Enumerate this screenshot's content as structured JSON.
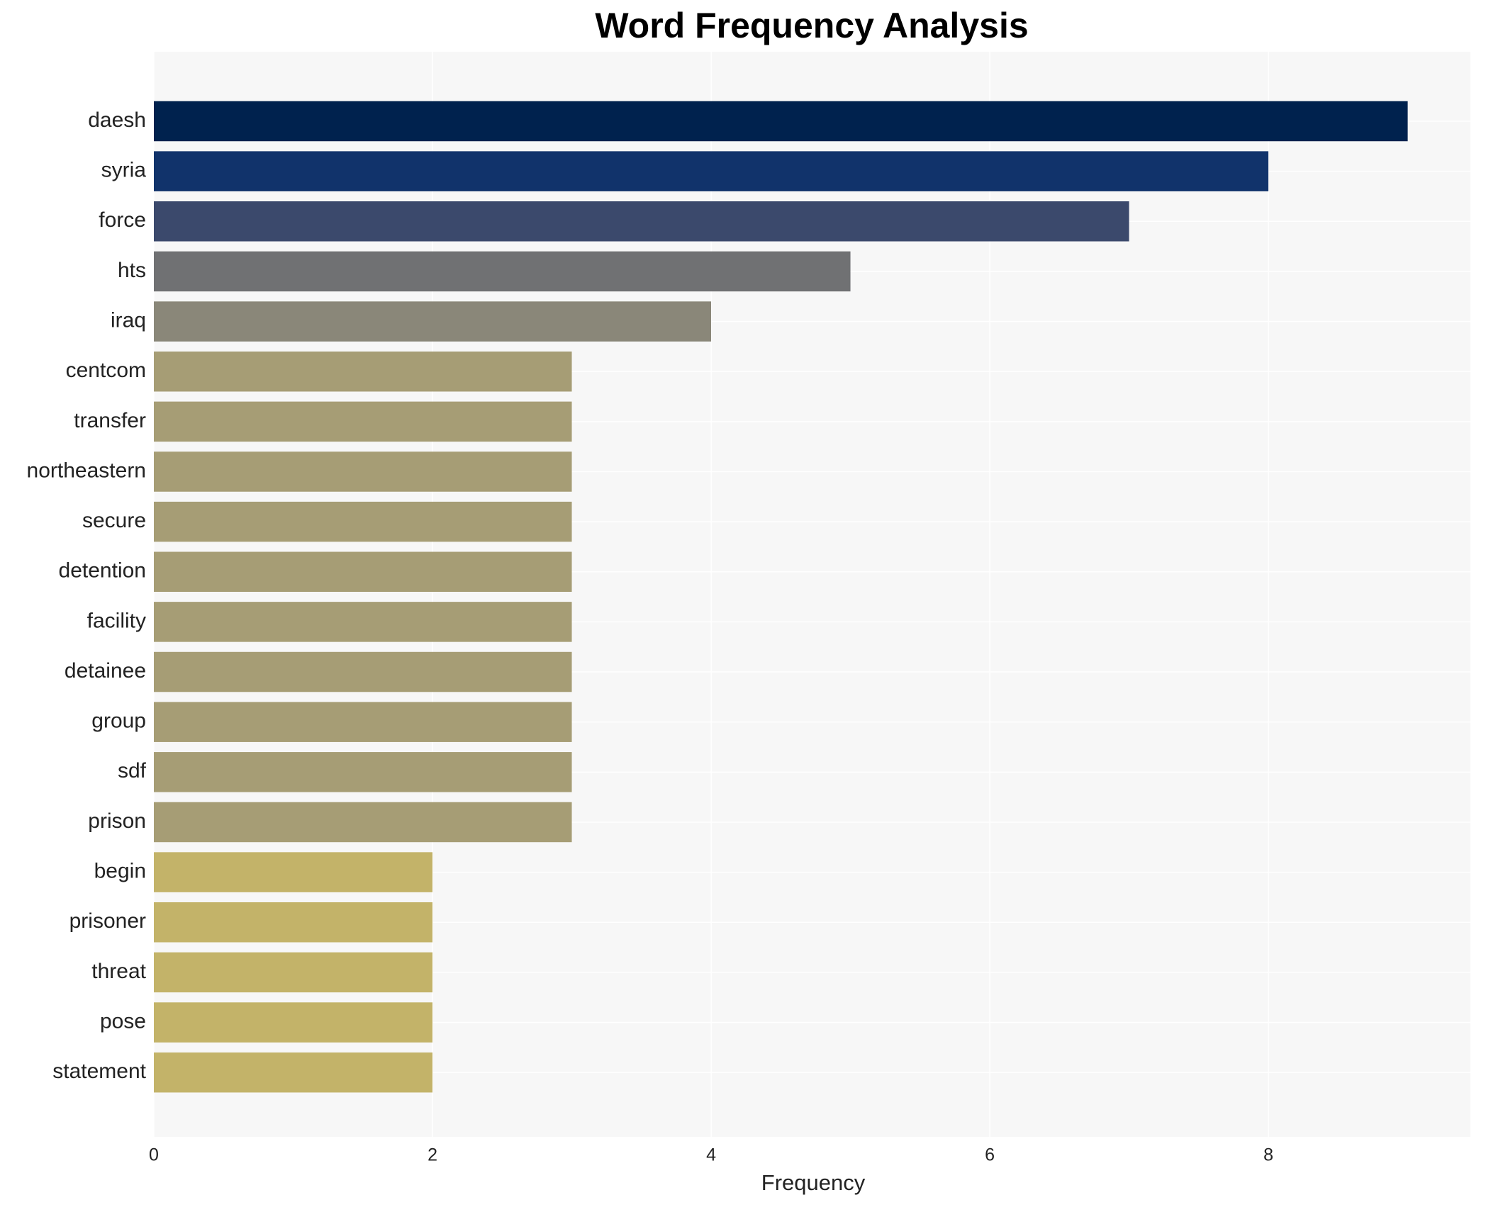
{
  "chart_data": {
    "type": "bar",
    "orientation": "horizontal",
    "title": "Word Frequency Analysis",
    "xlabel": "Frequency",
    "categories": [
      "daesh",
      "syria",
      "force",
      "hts",
      "iraq",
      "centcom",
      "transfer",
      "northeastern",
      "secure",
      "detention",
      "facility",
      "detainee",
      "group",
      "sdf",
      "prison",
      "begin",
      "prisoner",
      "threat",
      "pose",
      "statement"
    ],
    "values": [
      9,
      8,
      7,
      5,
      4,
      3,
      3,
      3,
      3,
      3,
      3,
      3,
      3,
      3,
      3,
      2,
      2,
      2,
      2,
      2
    ],
    "colors": [
      "#00224e",
      "#11336b",
      "#3b496c",
      "#707173",
      "#8a8779",
      "#a69d75",
      "#a69d75",
      "#a69d75",
      "#a69d75",
      "#a69d75",
      "#a69d75",
      "#a69d75",
      "#a69d75",
      "#a69d75",
      "#a69d75",
      "#c3b369",
      "#c3b369",
      "#c3b369",
      "#c3b369",
      "#c3b369"
    ],
    "xlim": [
      0,
      9.45
    ],
    "xticks": [
      0,
      2,
      4,
      6,
      8
    ],
    "grid": true
  }
}
